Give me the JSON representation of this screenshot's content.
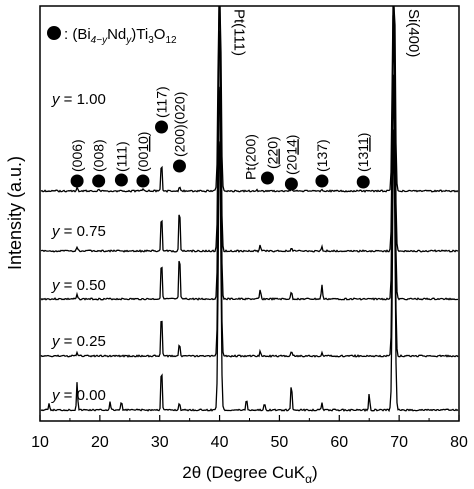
{
  "chart_data": {
    "type": "line",
    "xlabel_main": "2θ (Degree CuK",
    "xlabel_sub": "α",
    "xlabel_end": ")",
    "ylabel": "Intensity (a.u.)",
    "xlim": [
      10,
      80
    ],
    "xticks": [
      "10",
      "20",
      "30",
      "40",
      "50",
      "60",
      "70",
      "80"
    ],
    "legend": {
      "prefix": ": (Bi",
      "sub1": "4−y",
      "mid1": "Nd",
      "sub2": "y",
      "mid2": ")Ti",
      "sub3": "3",
      "mid3": "O",
      "sub4": "12"
    },
    "substrate_labels": [
      {
        "text": "Pt(111)",
        "x": 40.0
      },
      {
        "text": "Si(400)",
        "x": 69.1
      }
    ],
    "peak_labels": [
      {
        "text": "(006)",
        "x": 16.2
      },
      {
        "text": "(008)",
        "x": 19.8
      },
      {
        "text": "(111)",
        "x": 23.6
      },
      {
        "text": "(0010)",
        "x": 27.2,
        "underline": "10"
      },
      {
        "text": "(117)",
        "x": 30.3
      },
      {
        "text": "(200)(020)",
        "x": 33.3
      },
      {
        "text": "Pt(200)",
        "x": 46.2
      },
      {
        "text": "(220)",
        "x": 48.0,
        "underline": "22"
      },
      {
        "text": "(2014)",
        "x": 52.0,
        "underline": "14"
      },
      {
        "text": "(137)",
        "x": 57.1
      },
      {
        "text": "(1311)",
        "x": 64.0,
        "underline": "11"
      }
    ],
    "markers_x": [
      16.2,
      19.8,
      23.6,
      27.2,
      30.3,
      33.3,
      48.0,
      52.0,
      57.1,
      64.0
    ],
    "series": [
      {
        "name": "y = 1.00",
        "label_var": "y",
        "label_val": " = 1.00",
        "peaks": [
          [
            16.2,
            0.04
          ],
          [
            19.8,
            0.03
          ],
          [
            23.6,
            0.02
          ],
          [
            27.2,
            0.02
          ],
          [
            30.3,
            0.4
          ],
          [
            33.3,
            0.06
          ],
          [
            40.0,
            3.5
          ],
          [
            46.2,
            0.02
          ],
          [
            52.0,
            0.02
          ],
          [
            57.1,
            0.02
          ],
          [
            69.1,
            3.5
          ]
        ]
      },
      {
        "name": "y = 0.75",
        "label_var": "y",
        "label_val": " = 0.75",
        "peaks": [
          [
            16.2,
            0.05
          ],
          [
            30.3,
            0.5
          ],
          [
            33.3,
            0.6
          ],
          [
            40.0,
            3.5
          ],
          [
            46.8,
            0.08
          ],
          [
            52.0,
            0.04
          ],
          [
            57.1,
            0.05
          ],
          [
            69.1,
            3.5
          ]
        ]
      },
      {
        "name": "y = 0.50",
        "label_var": "y",
        "label_val": " = 0.50",
        "peaks": [
          [
            16.2,
            0.05
          ],
          [
            30.3,
            0.55
          ],
          [
            33.3,
            0.62
          ],
          [
            40.0,
            3.5
          ],
          [
            46.8,
            0.12
          ],
          [
            52.0,
            0.1
          ],
          [
            57.1,
            0.18
          ],
          [
            69.1,
            3.5
          ]
        ]
      },
      {
        "name": "y = 0.25",
        "label_var": "y",
        "label_val": " = 0.25",
        "peaks": [
          [
            16.2,
            0.04
          ],
          [
            30.3,
            0.6
          ],
          [
            33.3,
            0.18
          ],
          [
            40.0,
            3.5
          ],
          [
            46.8,
            0.06
          ],
          [
            52.0,
            0.06
          ],
          [
            57.1,
            0.04
          ],
          [
            69.1,
            3.5
          ]
        ]
      },
      {
        "name": "y = 0.00",
        "label_var": "y",
        "label_val": " = 0.00",
        "peaks": [
          [
            11.5,
            0.08
          ],
          [
            16.2,
            0.35
          ],
          [
            21.7,
            0.1
          ],
          [
            23.6,
            0.12
          ],
          [
            30.3,
            0.6
          ],
          [
            33.3,
            0.1
          ],
          [
            40.0,
            3.5
          ],
          [
            44.5,
            0.15
          ],
          [
            47.5,
            0.08
          ],
          [
            52.0,
            0.35
          ],
          [
            57.1,
            0.1
          ],
          [
            65.0,
            0.2
          ],
          [
            69.1,
            3.5
          ]
        ]
      }
    ]
  }
}
